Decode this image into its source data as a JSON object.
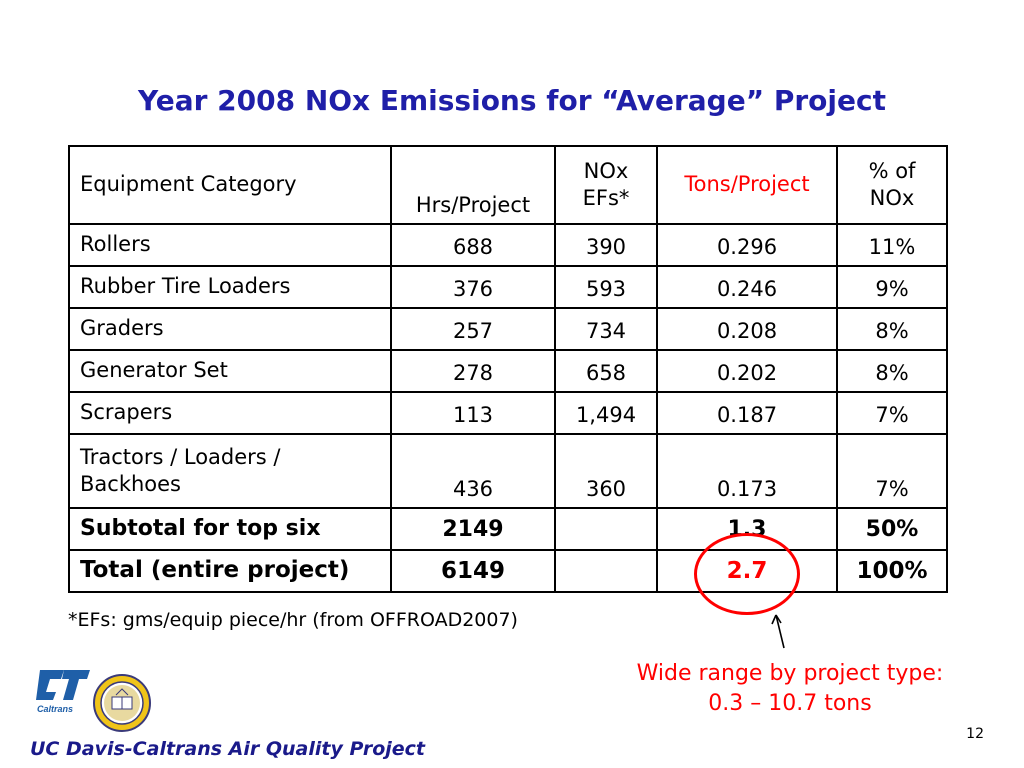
{
  "title": "Year 2008 NOx Emissions for “Average” Project",
  "table": {
    "headers": {
      "category": "Equipment Category",
      "hrs": "Hrs/Project",
      "nox_line1": "NOx",
      "nox_line2": "EFs*",
      "tons": "Tons/Project",
      "pct_line1": "% of",
      "pct_line2": "NOx"
    },
    "rows": [
      {
        "category": "Rollers",
        "hrs": "688",
        "efs": "390",
        "tons": "0.296",
        "pct": "11%"
      },
      {
        "category": "Rubber Tire Loaders",
        "hrs": "376",
        "efs": "593",
        "tons": "0.246",
        "pct": "9%"
      },
      {
        "category": "Graders",
        "hrs": "257",
        "efs": "734",
        "tons": "0.208",
        "pct": "8%"
      },
      {
        "category": "Generator Set",
        "hrs": "278",
        "efs": "658",
        "tons": "0.202",
        "pct": "8%"
      },
      {
        "category": "Scrapers",
        "hrs": "113",
        "efs": "1,494",
        "tons": "0.187",
        "pct": "7%"
      },
      {
        "category_line1": "Tractors / Loaders /",
        "category_line2": "Backhoes",
        "hrs": "436",
        "efs": "360",
        "tons": "0.173",
        "pct": "7%"
      }
    ],
    "subtotal": {
      "label": "Subtotal for top six",
      "hrs": "2149",
      "efs": "",
      "tons": "1.3",
      "pct": "50%"
    },
    "total": {
      "label": "Total (entire project)",
      "hrs": "6149",
      "efs": "",
      "tons": "2.7",
      "pct": "100%"
    }
  },
  "footnote": "*EFs:  gms/equip piece/hr (from OFFROAD2007)",
  "note": {
    "line1": "Wide range by project type:",
    "line2": "0.3 – 10.7 tons"
  },
  "footer": {
    "org": "UC Davis-Caltrans Air Quality Project",
    "page": "12",
    "logo_text": "Caltrans"
  },
  "colors": {
    "title": "#1f1fa8",
    "highlight": "#ff0000",
    "logo_blue": "#1f5fa8"
  }
}
